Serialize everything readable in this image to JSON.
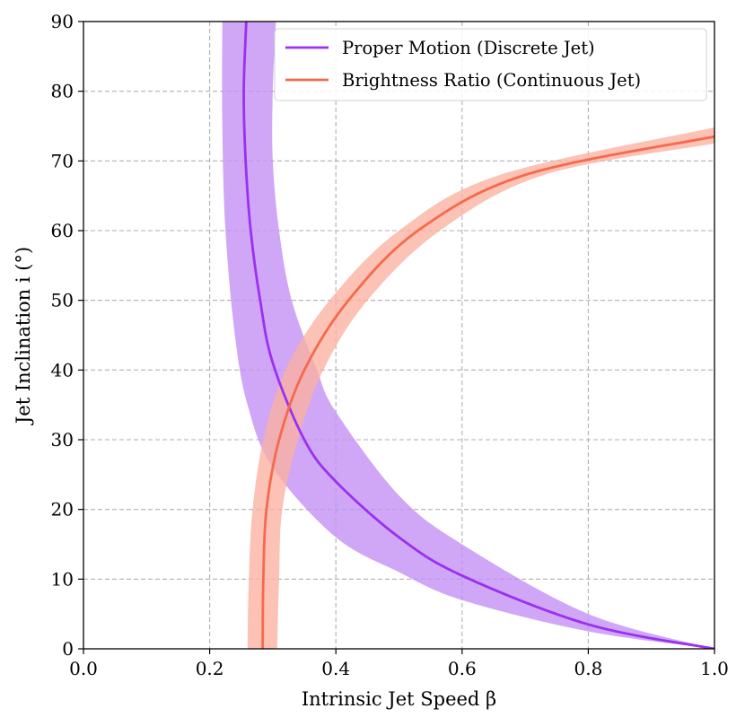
{
  "chart_data": {
    "type": "line",
    "xlabel": "Intrinsic Jet Speed β",
    "ylabel": "Jet Inclination i (°)",
    "xlim": [
      0.0,
      1.0
    ],
    "ylim": [
      0,
      90
    ],
    "xticks": [
      "0.0",
      "0.2",
      "0.4",
      "0.6",
      "0.8",
      "1.0"
    ],
    "yticks": [
      "0",
      "10",
      "20",
      "30",
      "40",
      "50",
      "60",
      "70",
      "80",
      "90"
    ],
    "grid": true,
    "legend_position": "top-right",
    "series": [
      {
        "name": "Proper Motion (Discrete Jet)",
        "color": "#9b30f0",
        "band_color": "#c38df5",
        "points": [
          [
            1.0,
            0
          ],
          [
            0.8,
            3.5
          ],
          [
            0.6,
            10.5
          ],
          [
            0.5,
            16
          ],
          [
            0.4,
            24
          ],
          [
            0.35,
            30
          ],
          [
            0.3,
            41
          ],
          [
            0.28,
            50
          ],
          [
            0.265,
            60
          ],
          [
            0.257,
            70
          ],
          [
            0.254,
            80
          ],
          [
            0.258,
            90
          ]
        ],
        "band_upper": [
          [
            1.0,
            0
          ],
          [
            0.8,
            5
          ],
          [
            0.6,
            15
          ],
          [
            0.5,
            22
          ],
          [
            0.4,
            34
          ],
          [
            0.37,
            40
          ],
          [
            0.33,
            50
          ],
          [
            0.31,
            60
          ],
          [
            0.3,
            70
          ],
          [
            0.3,
            80
          ],
          [
            0.305,
            90
          ]
        ],
        "band_lower": [
          [
            1.0,
            0
          ],
          [
            0.8,
            2.5
          ],
          [
            0.6,
            7
          ],
          [
            0.5,
            11
          ],
          [
            0.4,
            16
          ],
          [
            0.3,
            26
          ],
          [
            0.26,
            35
          ],
          [
            0.24,
            45
          ],
          [
            0.225,
            60
          ],
          [
            0.22,
            75
          ],
          [
            0.22,
            90
          ]
        ]
      },
      {
        "name": "Brightness Ratio (Continuous Jet)",
        "color": "#f56a4d",
        "band_color": "#fab1a0",
        "points": [
          [
            0.284,
            0
          ],
          [
            0.285,
            10
          ],
          [
            0.29,
            20
          ],
          [
            0.31,
            30
          ],
          [
            0.35,
            40
          ],
          [
            0.42,
            50
          ],
          [
            0.53,
            60
          ],
          [
            0.7,
            68
          ],
          [
            1.0,
            73.5
          ]
        ],
        "band_upper": [
          [
            0.307,
            0
          ],
          [
            0.31,
            10
          ],
          [
            0.315,
            20
          ],
          [
            0.34,
            30
          ],
          [
            0.38,
            40
          ],
          [
            0.45,
            50
          ],
          [
            0.565,
            60
          ],
          [
            0.73,
            68
          ],
          [
            1.0,
            72.5
          ]
        ],
        "band_lower": [
          [
            0.26,
            0
          ],
          [
            0.262,
            10
          ],
          [
            0.268,
            20
          ],
          [
            0.285,
            30
          ],
          [
            0.32,
            40
          ],
          [
            0.39,
            50
          ],
          [
            0.5,
            60
          ],
          [
            0.66,
            68
          ],
          [
            1.0,
            74.8
          ]
        ]
      }
    ]
  }
}
